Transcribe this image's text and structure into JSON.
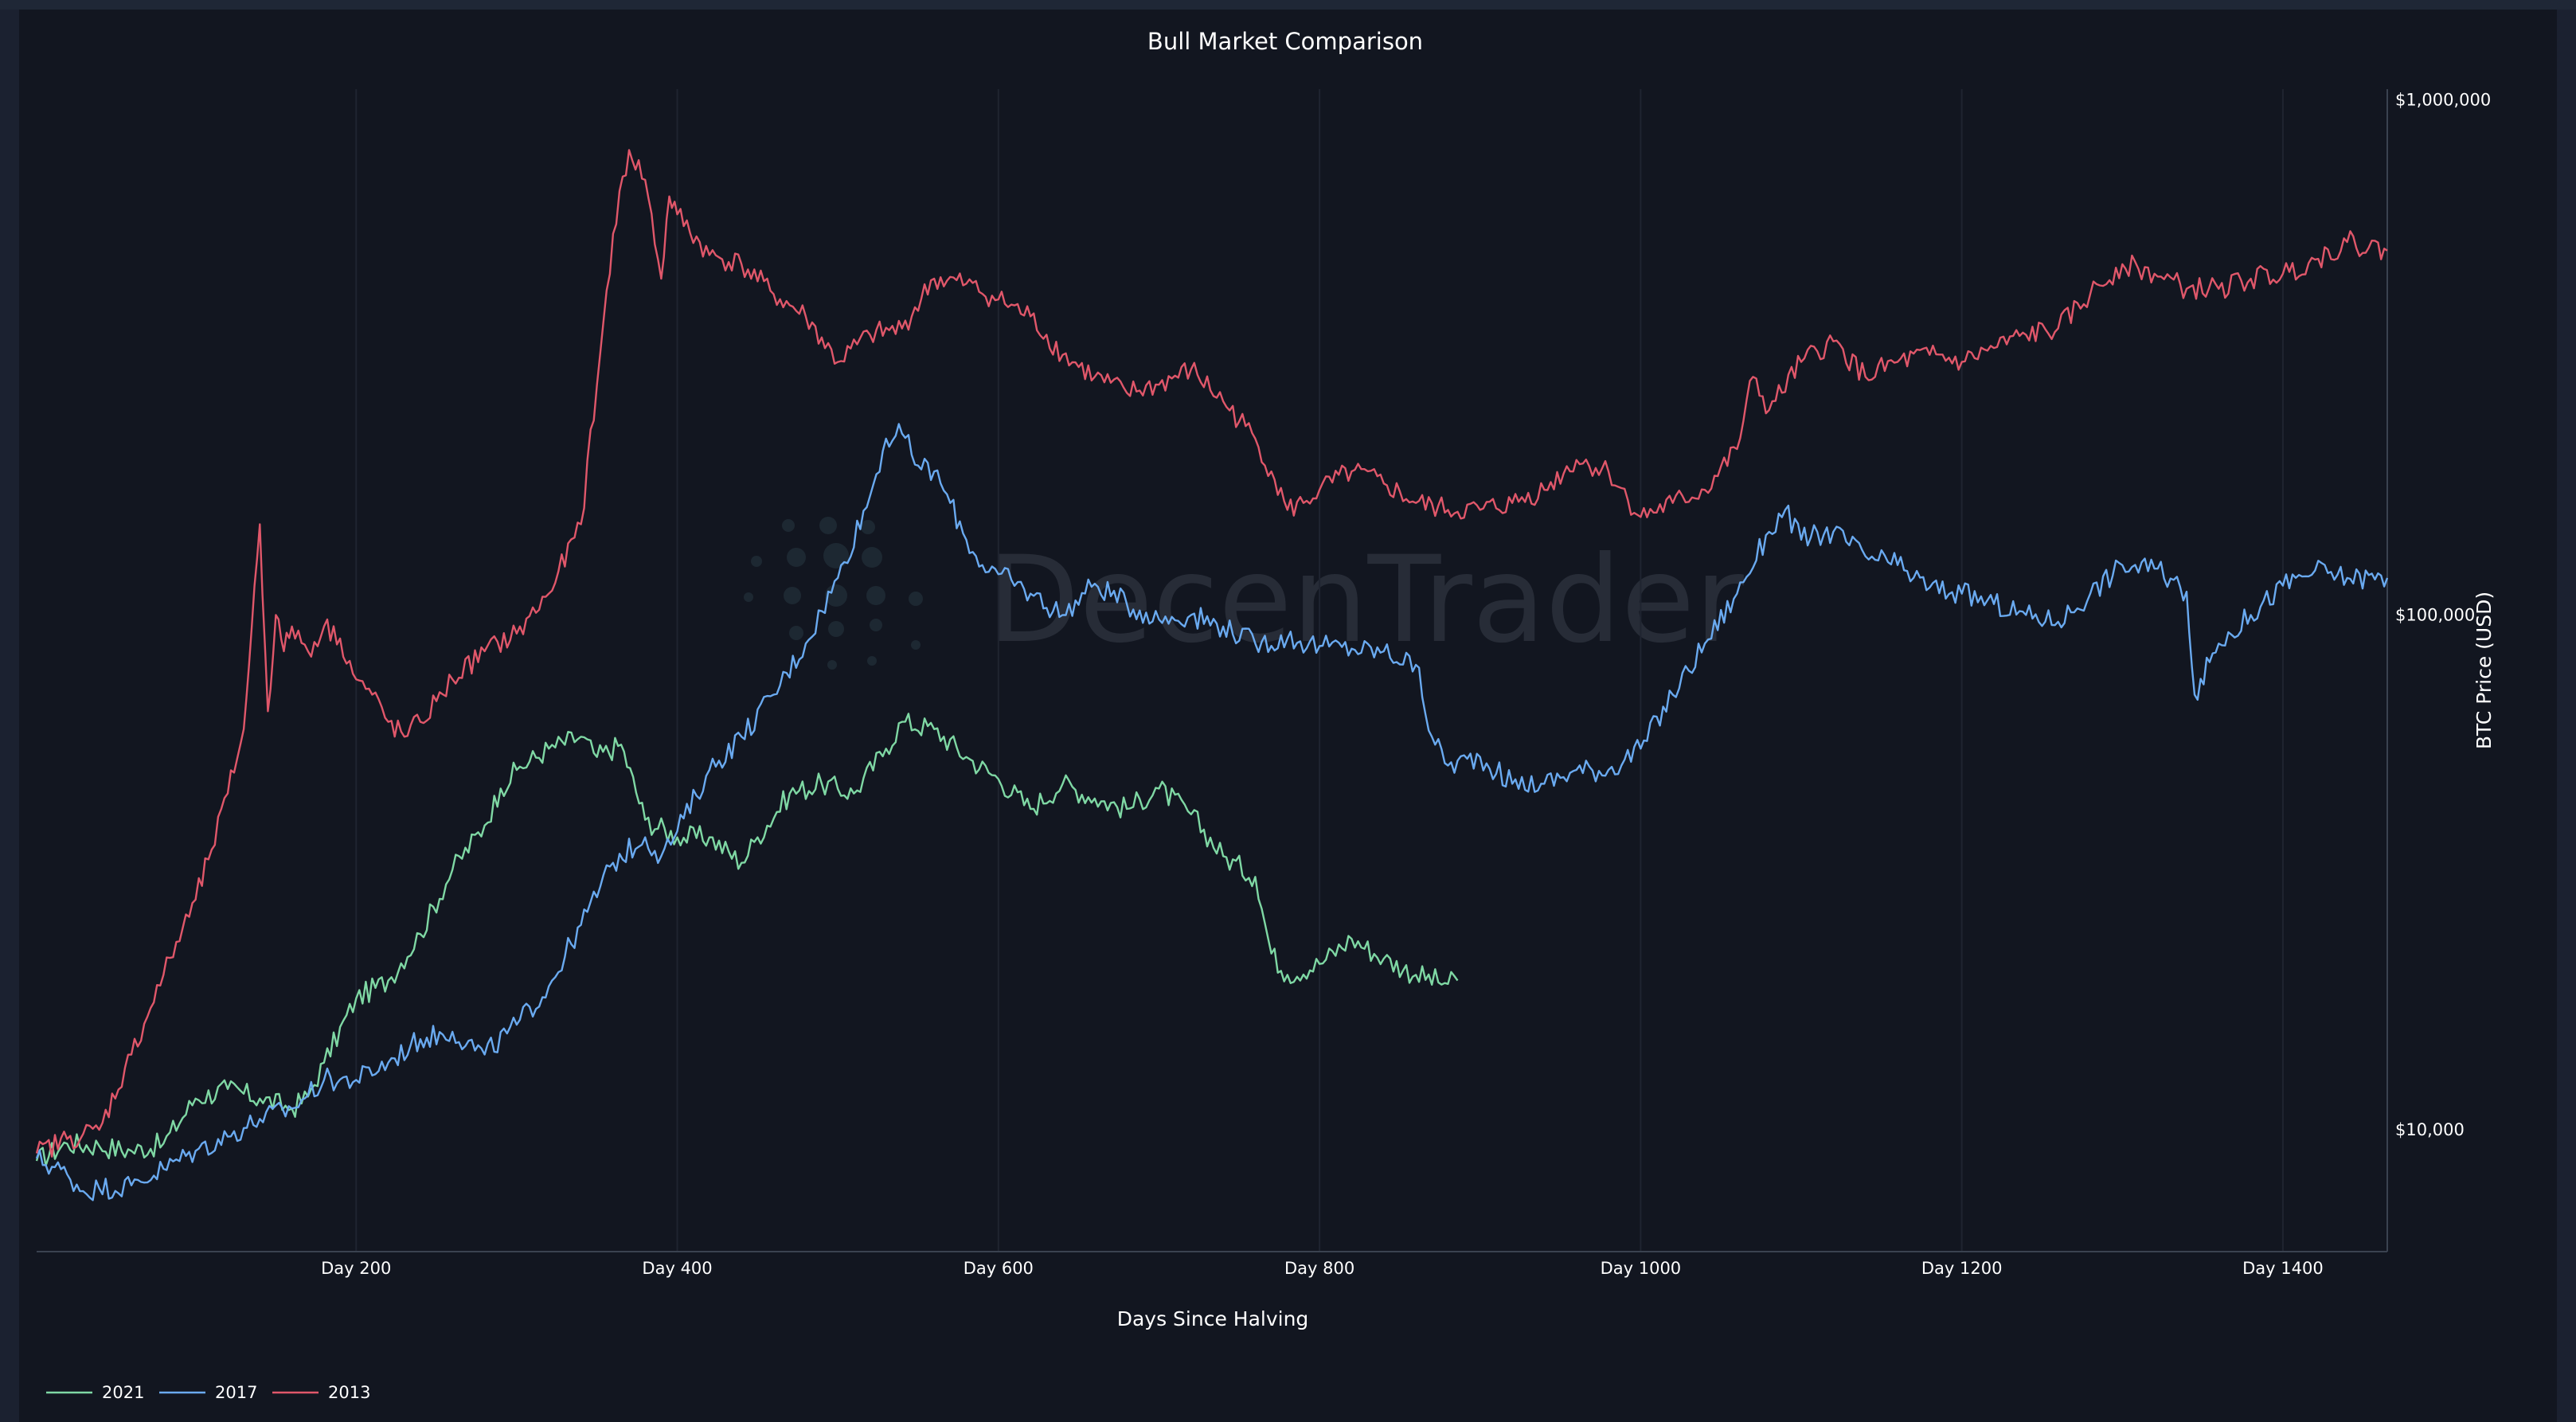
{
  "chart_data": {
    "type": "line",
    "title": "Bull Market Comparison",
    "xlabel": "Days Since Halving",
    "ylabel": "BTC Price (USD)",
    "yscale": "log",
    "xlim": [
      1,
      1465
    ],
    "ylim": [
      5800,
      1050000
    ],
    "x_ticks": [
      200,
      400,
      600,
      800,
      1000,
      1200,
      1400
    ],
    "x_tick_labels": [
      "Day 200",
      "Day 400",
      "Day 600",
      "Day 800",
      "Day 1000",
      "Day 1200",
      "Day 1400"
    ],
    "y_ticks": [
      10000,
      100000,
      1000000
    ],
    "y_tick_labels": [
      "$10,000",
      "$100,000",
      "$1,000,000"
    ],
    "grid": "vertical",
    "y_axis_side": "right",
    "legend_position": "bottom-left",
    "watermark": "DecenTrader",
    "series": [
      {
        "name": "2021",
        "color": "#7fd8a4",
        "x": [
          1,
          20,
          40,
          60,
          80,
          100,
          120,
          140,
          160,
          170,
          180,
          200,
          220,
          240,
          260,
          280,
          290,
          300,
          320,
          340,
          350,
          365,
          380,
          400,
          420,
          440,
          450,
          470,
          490,
          510,
          530,
          540,
          560,
          580,
          600,
          620,
          640,
          660,
          680,
          700,
          720,
          740,
          760,
          770,
          780,
          800,
          820,
          840,
          860,
          880,
          886
        ],
        "y": [
          8700,
          9400,
          9300,
          9100,
          9400,
          11500,
          12000,
          11500,
          11000,
          11600,
          13500,
          18000,
          19500,
          24000,
          32000,
          39000,
          46000,
          50000,
          55000,
          58000,
          53000,
          56000,
          40000,
          37000,
          37000,
          33000,
          37000,
          45000,
          47000,
          45000,
          55000,
          62000,
          60000,
          53000,
          48000,
          42000,
          47000,
          44000,
          42000,
          46000,
          41000,
          34000,
          31000,
          22000,
          20000,
          21000,
          23500,
          21500,
          20000,
          19200,
          19500
        ]
      },
      {
        "name": "2017",
        "color": "#6aaaf0",
        "x": [
          1,
          20,
          30,
          40,
          60,
          80,
          100,
          120,
          140,
          160,
          180,
          200,
          220,
          240,
          260,
          280,
          300,
          320,
          340,
          360,
          380,
          390,
          400,
          420,
          440,
          460,
          480,
          500,
          520,
          530,
          540,
          550,
          560,
          570,
          580,
          590,
          600,
          620,
          640,
          660,
          680,
          700,
          720,
          740,
          760,
          780,
          800,
          820,
          840,
          860,
          870,
          880,
          900,
          920,
          940,
          960,
          980,
          1000,
          1020,
          1040,
          1060,
          1080,
          1090,
          1100,
          1120,
          1140,
          1160,
          1180,
          1200,
          1220,
          1240,
          1260,
          1280,
          1300,
          1320,
          1340,
          1345,
          1360,
          1380,
          1400,
          1420,
          1440,
          1465
        ],
        "y": [
          8800,
          8200,
          7600,
          7700,
          7800,
          8400,
          9100,
          9700,
          10500,
          11000,
          12500,
          12500,
          13500,
          15000,
          15500,
          14000,
          16000,
          19000,
          25000,
          33000,
          37000,
          34000,
          38000,
          50000,
          58000,
          70000,
          88000,
          118000,
          170000,
          220000,
          225000,
          195000,
          190000,
          165000,
          140000,
          125000,
          120000,
          110000,
          100000,
          115000,
          105000,
          98000,
          100000,
          95000,
          88000,
          90000,
          87000,
          86000,
          85000,
          80000,
          58000,
          51000,
          53000,
          47000,
          47000,
          50000,
          50000,
          55000,
          70000,
          88000,
          110000,
          145000,
          160000,
          140000,
          145000,
          130000,
          125000,
          113000,
          110000,
          105000,
          100000,
          97000,
          110000,
          125000,
          123000,
          111000,
          70000,
          88000,
          100000,
          114000,
          122000,
          118000,
          118000
        ]
      },
      {
        "name": "2013",
        "color": "#e0576a",
        "x": [
          1,
          20,
          40,
          60,
          80,
          100,
          110,
          120,
          130,
          135,
          140,
          145,
          150,
          155,
          160,
          170,
          180,
          190,
          200,
          210,
          220,
          230,
          240,
          250,
          260,
          280,
          300,
          320,
          340,
          350,
          360,
          370,
          380,
          390,
          395,
          400,
          420,
          440,
          460,
          480,
          500,
          520,
          540,
          560,
          580,
          600,
          620,
          640,
          660,
          680,
          700,
          720,
          740,
          760,
          770,
          780,
          790,
          800,
          820,
          840,
          860,
          880,
          900,
          920,
          940,
          960,
          980,
          1000,
          1020,
          1040,
          1060,
          1070,
          1080,
          1100,
          1120,
          1140,
          1160,
          1180,
          1200,
          1220,
          1240,
          1260,
          1280,
          1300,
          1310,
          1320,
          1340,
          1360,
          1380,
          1400,
          1420,
          1440,
          1465
        ],
        "y": [
          9000,
          9600,
          10000,
          14000,
          20000,
          28000,
          35000,
          45000,
          60000,
          95000,
          150000,
          65000,
          100000,
          85000,
          95000,
          85000,
          95000,
          90000,
          75000,
          70000,
          62000,
          58000,
          62000,
          68000,
          75000,
          85000,
          92000,
          110000,
          150000,
          280000,
          550000,
          800000,
          700000,
          450000,
          650000,
          600000,
          500000,
          480000,
          420000,
          380000,
          310000,
          350000,
          360000,
          450000,
          440000,
          410000,
          380000,
          320000,
          290000,
          270000,
          280000,
          300000,
          260000,
          220000,
          190000,
          160000,
          165000,
          175000,
          190000,
          180000,
          165000,
          160000,
          160000,
          165000,
          175000,
          200000,
          190000,
          155000,
          165000,
          175000,
          210000,
          290000,
          250000,
          310000,
          340000,
          290000,
          310000,
          320000,
          310000,
          330000,
          350000,
          360000,
          420000,
          480000,
          470000,
          460000,
          430000,
          430000,
          450000,
          460000,
          490000,
          530000,
          510000
        ]
      }
    ]
  }
}
